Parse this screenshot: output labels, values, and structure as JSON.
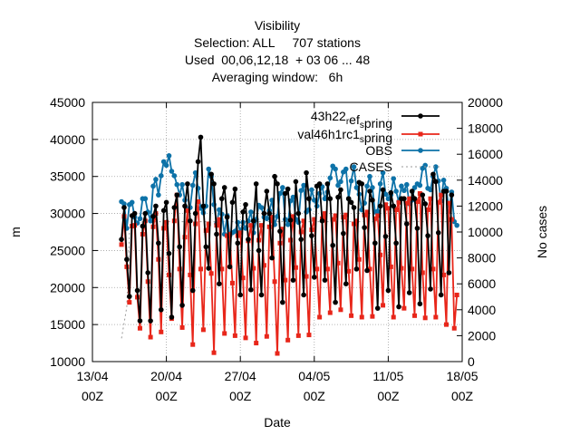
{
  "chart_data": {
    "type": "line",
    "title_lines": [
      "Visibility",
      "Selection: ALL     707 stations",
      "Used  00,06,12,18  + 03 06 ... 48",
      "Averaging window:   6h"
    ],
    "xlabel": "Date",
    "ylabel": "m",
    "y2label": "No cases",
    "xlim": [
      0,
      35
    ],
    "ylim": [
      10000,
      45000
    ],
    "y2lim": [
      0,
      20000
    ],
    "x_ticks": [
      {
        "x": 0,
        "line1": "13/04",
        "line2": "00Z"
      },
      {
        "x": 7,
        "line1": "20/04",
        "line2": "00Z"
      },
      {
        "x": 14,
        "line1": "27/04",
        "line2": "00Z"
      },
      {
        "x": 21,
        "line1": "04/05",
        "line2": "00Z"
      },
      {
        "x": 28,
        "line1": "11/05",
        "line2": "00Z"
      },
      {
        "x": 35,
        "line1": "18/05",
        "line2": "00Z"
      }
    ],
    "y_ticks": [
      "10000",
      "15000",
      "20000",
      "25000",
      "30000",
      "35000",
      "40000",
      "45000"
    ],
    "y2_ticks": [
      "0",
      "2000",
      "4000",
      "6000",
      "8000",
      "10000",
      "12000",
      "14000",
      "16000",
      "18000",
      "20000"
    ],
    "grid": true,
    "legend_position": "top-right",
    "x_start": 2.75,
    "x_step": 0.25,
    "series": [
      {
        "name": "43h22 ref spring",
        "name_parts": {
          "a": "43h22",
          "s1": "r",
          "b": "ef",
          "s2": "s",
          "c": "pring"
        },
        "color": "#000000",
        "marker": "circle",
        "axis": "y",
        "values": [
          26500,
          30800,
          23800,
          18800,
          29700,
          30000,
          19600,
          15500,
          28300,
          30000,
          22000,
          15500,
          29600,
          31000,
          26000,
          17000,
          30400,
          31500,
          24600,
          16000,
          30800,
          32500,
          25500,
          17600,
          31000,
          34000,
          29000,
          19600,
          30000,
          37000,
          40300,
          31000,
          25500,
          22600,
          35300,
          34000,
          27200,
          20500,
          32000,
          33500,
          29500,
          22800,
          31500,
          33300,
          26000,
          19000,
          30200,
          31200,
          26500,
          19700,
          29000,
          34000,
          25000,
          19000,
          30000,
          33000,
          30000,
          24000,
          35000,
          34000,
          27600,
          18000,
          32700,
          33300,
          29100,
          21000,
          34300,
          30000,
          26500,
          19000,
          35500,
          32000,
          27000,
          21400,
          33700,
          34000,
          29000,
          21000,
          34000,
          32000,
          25700,
          18000,
          32200,
          33200,
          27300,
          20500,
          32000,
          31500,
          30800,
          22500,
          34200,
          34000,
          28100,
          22300,
          33000,
          31800,
          26000,
          17200,
          31000,
          33200,
          26900,
          19600,
          32800,
          31000,
          26000,
          17400,
          32000,
          32000,
          28600,
          19300,
          33000,
          32000,
          28000,
          17800,
          32500,
          31300,
          27000,
          19800,
          35300,
          34300,
          27400,
          19000,
          33000,
          33000,
          22000,
          32500
        ]
      },
      {
        "name": "val46h1rc1 spring",
        "name_parts": {
          "a": "val46h1rc1",
          "s1": "",
          "b": "",
          "s2": "s",
          "c": "pring"
        },
        "color": "#e8261a",
        "marker": "square",
        "axis": "y",
        "values": [
          25800,
          29600,
          22800,
          18000,
          28300,
          28400,
          18700,
          14500,
          27200,
          29000,
          20800,
          13300,
          28200,
          30000,
          23800,
          14000,
          28000,
          28800,
          21700,
          15800,
          29000,
          32500,
          22500,
          14600,
          26800,
          30400,
          21700,
          12300,
          28600,
          31600,
          22500,
          14300,
          27700,
          28600,
          21900,
          11200,
          28400,
          29200,
          22500,
          13800,
          27000,
          27200,
          20600,
          13500,
          27000,
          27400,
          21300,
          13200,
          26300,
          28400,
          22600,
          12500,
          26400,
          28400,
          23000,
          13400,
          28200,
          29500,
          20800,
          11100,
          26000,
          27900,
          21000,
          12900,
          26400,
          29600,
          22700,
          13500,
          27500,
          29000,
          21500,
          13600,
          27800,
          29200,
          22500,
          16000,
          29300,
          30000,
          22500,
          16600,
          29200,
          29700,
          23300,
          17000,
          29500,
          29800,
          22200,
          16200,
          28600,
          29000,
          23800,
          16000,
          29800,
          30200,
          22500,
          16100,
          29300,
          29700,
          24400,
          17600,
          31200,
          30700,
          22800,
          16000,
          30500,
          31500,
          22600,
          17200,
          31400,
          32000,
          22500,
          16200,
          31600,
          32700,
          22000,
          15900,
          30500,
          32000,
          22500,
          16000,
          31500,
          32500,
          21700,
          15000,
          31400,
          29200,
          14500,
          19000
        ]
      },
      {
        "name": "OBS",
        "name_parts": {
          "a": "OBS",
          "s1": "",
          "b": "",
          "s2": "",
          "c": ""
        },
        "color": "#0d72a8",
        "marker": "circle",
        "axis": "y",
        "values": [
          31600,
          31300,
          28000,
          31200,
          31500,
          29500,
          28700,
          29300,
          32000,
          32000,
          30200,
          29000,
          33700,
          34600,
          32500,
          35100,
          37000,
          36500,
          37800,
          35700,
          35100,
          33900,
          32500,
          33900,
          31800,
          30400,
          30800,
          33800,
          35500,
          33400,
          30700,
          30100,
          31000,
          36000,
          35000,
          31200,
          28600,
          30500,
          29900,
          27200,
          29700,
          27000,
          27400,
          27600,
          28800,
          27500,
          28800,
          28000,
          29000,
          30200,
          27400,
          29200,
          31100,
          30800,
          29500,
          29300,
          30400,
          31800,
          28500,
          29600,
          32700,
          33500,
          29200,
          28500,
          31700,
          32200,
          29200,
          28800,
          33100,
          33800,
          30200,
          30500,
          33200,
          31800,
          31000,
          32700,
          33600,
          32000,
          32900,
          34800,
          36400,
          36000,
          33800,
          34300,
          35600,
          36000,
          32000,
          34400,
          36300,
          33500,
          32600,
          30500,
          31400,
          33700,
          35000,
          33500,
          30200,
          30300,
          34000,
          35500,
          32600,
          32000,
          32500,
          34700,
          33000,
          31600,
          33700,
          33100,
          33900,
          31300,
          31800,
          33500,
          34000,
          33800,
          36100,
          36500,
          33400,
          33200,
          35000,
          36300,
          34400,
          31700,
          34500,
          33400,
          30300,
          32900,
          28900,
          28400
        ]
      },
      {
        "name": "CASES",
        "name_parts": {
          "a": "CASES",
          "s1": "",
          "b": "",
          "s2": "",
          "c": ""
        },
        "color": "#999999",
        "marker": "none",
        "axis": "y2",
        "dashed": true,
        "values": [
          1800,
          3000,
          4200,
          10000,
          10200,
          10500,
          10600,
          10700,
          10800,
          10800,
          10800,
          10800,
          10800,
          10800,
          10800,
          10800,
          10800,
          10800,
          10800,
          10800,
          10800,
          10800,
          10800,
          10800,
          10800,
          10800,
          10800,
          10800,
          10800,
          10800,
          10800,
          10800,
          10800,
          10800,
          10800,
          10800,
          10800,
          10800,
          10800,
          10800,
          10800,
          10800,
          10800,
          10800,
          10800,
          10800,
          10800,
          10800,
          10800,
          10800,
          10800,
          10800,
          10800,
          10800,
          10800,
          10800,
          10800,
          10800,
          10800,
          10800,
          10800,
          10800,
          10800,
          10800,
          10800,
          10800,
          10800,
          10800,
          10800,
          10800,
          10800,
          10800,
          10800,
          10800,
          10800,
          10800,
          10800,
          10800,
          10800,
          10800,
          10800,
          10800,
          10800,
          10800,
          10800,
          10800,
          10800,
          10800,
          10800,
          10800,
          10800,
          10800,
          10800,
          10800,
          10800,
          10800,
          10800,
          10800,
          10800,
          10800,
          10800,
          10800,
          10800,
          10800,
          10800,
          10800,
          10800,
          10800,
          10800,
          10800,
          10800,
          10800,
          10800,
          10800,
          10800,
          10800,
          10800,
          10800,
          10800,
          10800,
          10800,
          10800,
          10800,
          10800,
          10800,
          10800,
          10800,
          10800
        ]
      }
    ]
  }
}
